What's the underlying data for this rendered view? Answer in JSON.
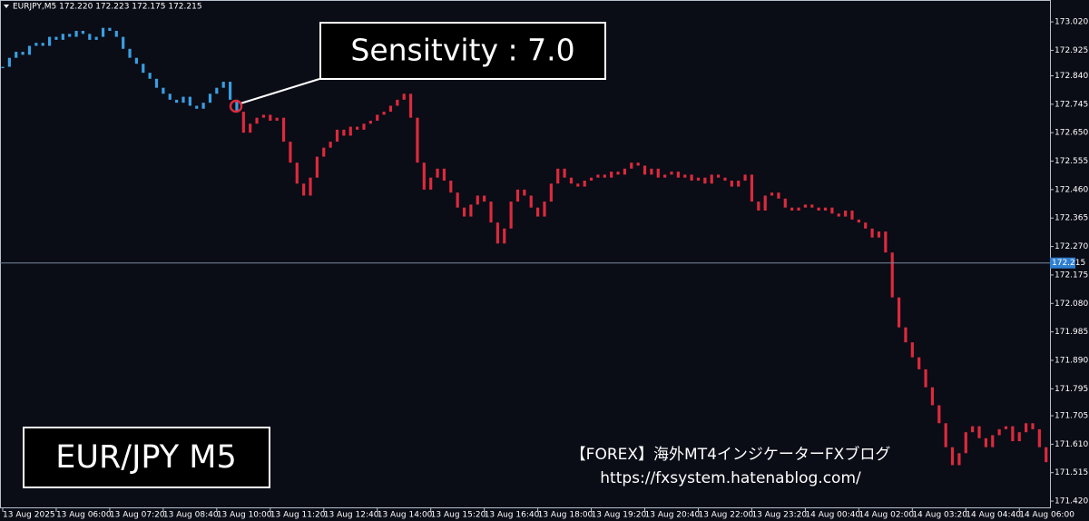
{
  "header": "EURJPY,M5  172.220 172.223 172.175 172.215",
  "callout": "Sensitvity : 7.0",
  "symbol_box": "EUR/JPY M5",
  "watermark": {
    "line1": "【FOREX】海外MT4インジケーターFXブログ",
    "line2": "https://fxsystem.hatenablog.com/"
  },
  "chart_data": {
    "type": "candlestick",
    "categories": [
      "13 Aug 2025",
      null,
      null,
      null,
      null,
      null,
      null,
      null,
      "13 Aug 06:00",
      null,
      null,
      null,
      null,
      null,
      null,
      null,
      "13 Aug 07:20",
      null,
      null,
      null,
      null,
      null,
      null,
      null,
      "13 Aug 08:40",
      null,
      null,
      null,
      null,
      null,
      null,
      null,
      "13 Aug 10:00",
      null,
      null,
      null,
      null,
      null,
      null,
      null,
      "13 Aug 11:20",
      null,
      null,
      null,
      null,
      null,
      null,
      null,
      "13 Aug 12:40",
      null,
      null,
      null,
      null,
      null,
      null,
      null,
      "13 Aug 14:00",
      null,
      null,
      null,
      null,
      null,
      null,
      null,
      "13 Aug 15:20",
      null,
      null,
      null,
      null,
      null,
      null,
      null,
      "13 Aug 16:40",
      null,
      null,
      null,
      null,
      null,
      null,
      null,
      "13 Aug 18:00",
      null,
      null,
      null,
      null,
      null,
      null,
      null,
      "13 Aug 19:20",
      null,
      null,
      null,
      null,
      null,
      null,
      null,
      "13 Aug 20:40",
      null,
      null,
      null,
      null,
      null,
      null,
      null,
      "13 Aug 22:00",
      null,
      null,
      null,
      null,
      null,
      null,
      null,
      "13 Aug 23:20",
      null,
      null,
      null,
      null,
      null,
      null,
      null,
      "14 Aug 00:40",
      null,
      null,
      null,
      null,
      null,
      null,
      null,
      "14 Aug 02:00",
      null,
      null,
      null,
      null,
      null,
      null,
      null,
      "14 Aug 03:20",
      null,
      null,
      null,
      null,
      null,
      null,
      null,
      "14 Aug 04:40",
      null,
      null,
      null,
      null,
      null,
      null,
      null,
      "14 Aug 06:00",
      null,
      null,
      null,
      null
    ],
    "series": [
      {
        "color": "#3a9fe0",
        "values": [
          172.87,
          172.9,
          172.92,
          172.91,
          172.94,
          172.95,
          172.94,
          172.97,
          172.96,
          172.98,
          172.97,
          172.99,
          172.98,
          172.96,
          172.97,
          173.0,
          172.99,
          172.97,
          172.93,
          172.9,
          172.88,
          172.85,
          172.83,
          172.8,
          172.78,
          172.76,
          172.75,
          172.77,
          172.74,
          172.73,
          172.75,
          172.78,
          172.8,
          172.82,
          172.76,
          172.72,
          null,
          null,
          null,
          null,
          null,
          null,
          null,
          null,
          null,
          null,
          null,
          null,
          null,
          null,
          null,
          null,
          null,
          null,
          null,
          null,
          null,
          null,
          null,
          null,
          null,
          null,
          null,
          null,
          null,
          null,
          null,
          null,
          null,
          null,
          null,
          null,
          null,
          null,
          null,
          null,
          null,
          null,
          null,
          null,
          null,
          null,
          null,
          null,
          null,
          null,
          null,
          null,
          null,
          null,
          null,
          null,
          null,
          null,
          null,
          null,
          null,
          null,
          null,
          null,
          null,
          null,
          null,
          null,
          null,
          null,
          null,
          null,
          null,
          null,
          null,
          null,
          null,
          null,
          null,
          null,
          null,
          null,
          null,
          null,
          null,
          null,
          null,
          null,
          null,
          null,
          null,
          null,
          null,
          null,
          null,
          null,
          null,
          null,
          null,
          null,
          null,
          null,
          null,
          null,
          null,
          null,
          null,
          null,
          null,
          null,
          null,
          null,
          null,
          null,
          null,
          null,
          null,
          null,
          null,
          null,
          null
        ]
      },
      {
        "color": "#dc2a3c",
        "values": [
          null,
          null,
          null,
          null,
          null,
          null,
          null,
          null,
          null,
          null,
          null,
          null,
          null,
          null,
          null,
          null,
          null,
          null,
          null,
          null,
          null,
          null,
          null,
          null,
          null,
          null,
          null,
          null,
          null,
          null,
          null,
          null,
          null,
          null,
          null,
          null,
          172.65,
          172.68,
          172.7,
          172.71,
          172.69,
          172.7,
          172.62,
          172.55,
          172.48,
          172.44,
          172.5,
          172.57,
          172.6,
          172.62,
          172.66,
          172.64,
          172.67,
          172.66,
          172.68,
          172.69,
          172.71,
          172.72,
          172.74,
          172.76,
          172.78,
          172.7,
          172.55,
          172.46,
          172.5,
          172.53,
          172.49,
          172.45,
          172.4,
          172.37,
          172.41,
          172.44,
          172.42,
          172.35,
          172.28,
          172.33,
          172.42,
          172.46,
          172.44,
          172.4,
          172.37,
          172.42,
          172.48,
          172.53,
          172.5,
          172.48,
          172.47,
          172.49,
          172.5,
          172.51,
          172.5,
          172.52,
          172.51,
          172.53,
          172.55,
          172.54,
          172.51,
          172.53,
          172.5,
          172.51,
          172.52,
          172.5,
          172.51,
          172.49,
          172.5,
          172.48,
          172.51,
          172.5,
          172.49,
          172.47,
          172.49,
          172.51,
          172.42,
          172.39,
          172.44,
          172.45,
          172.43,
          172.4,
          172.39,
          172.4,
          172.41,
          172.4,
          172.39,
          172.4,
          172.38,
          172.37,
          172.39,
          172.36,
          172.35,
          172.33,
          172.3,
          172.32,
          172.25,
          172.1,
          172.0,
          171.95,
          171.9,
          171.86,
          171.8,
          171.74,
          171.68,
          171.6,
          171.54,
          171.58,
          171.65,
          171.67,
          171.63,
          171.6,
          171.64,
          171.66,
          171.67,
          171.62,
          171.65,
          171.68,
          171.66,
          171.6,
          171.55
        ]
      }
    ],
    "ylim": [
      171.396,
      173.093
    ],
    "yticks": [
      {
        "value": 173.02,
        "label": "173.020"
      },
      {
        "value": 172.925,
        "label": "172.925"
      },
      {
        "value": 172.84,
        "label": "172.840"
      },
      {
        "value": 172.745,
        "label": "172.745"
      },
      {
        "value": 172.65,
        "label": "172.650"
      },
      {
        "value": 172.555,
        "label": "172.555"
      },
      {
        "value": 172.46,
        "label": "172.460"
      },
      {
        "value": 172.365,
        "label": "172.365"
      },
      {
        "value": 172.27,
        "label": "172.270"
      },
      {
        "value": 172.175,
        "label": "172.175"
      },
      {
        "value": 172.08,
        "label": "172.080"
      },
      {
        "value": 171.985,
        "label": "171.985"
      },
      {
        "value": 171.89,
        "label": "171.890"
      },
      {
        "value": 171.795,
        "label": "171.795"
      },
      {
        "value": 171.705,
        "label": "171.705"
      },
      {
        "value": 171.61,
        "label": "171.610"
      },
      {
        "value": 171.515,
        "label": "171.515"
      },
      {
        "value": 171.42,
        "label": "171.420"
      }
    ],
    "current_price": {
      "value": 172.215,
      "label": "172.215"
    },
    "grid": false
  }
}
